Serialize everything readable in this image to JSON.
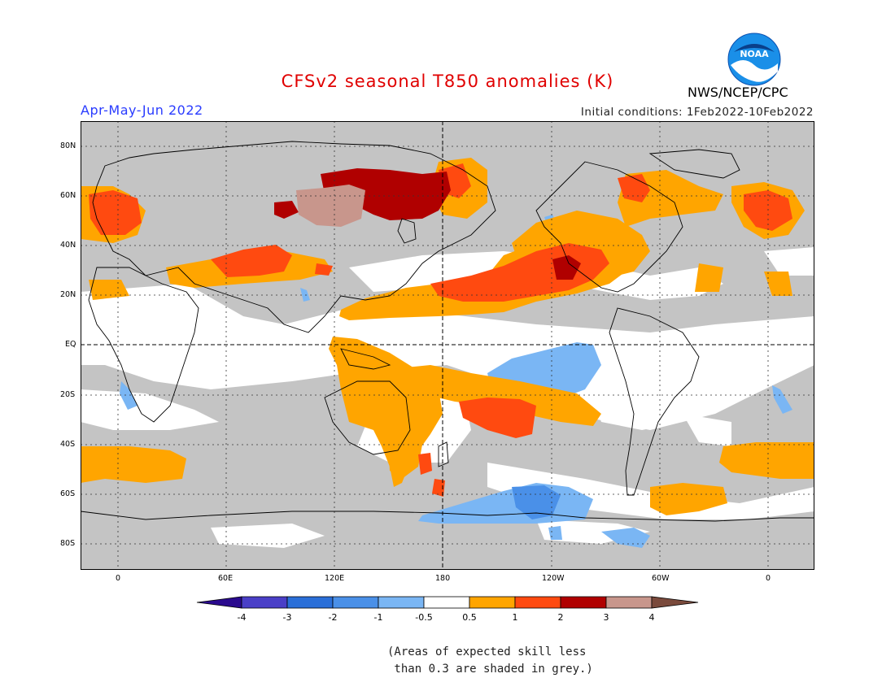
{
  "header": {
    "title": "CFSv2 seasonal T850 anomalies (K)",
    "season": "Apr-May-Jun 2022",
    "initial_conditions": "Initial conditions: 1Feb2022-10Feb2022",
    "agency": "NWS/NCEP/CPC",
    "logo_text": "NOAA",
    "title_color": "#e00000",
    "season_color": "#2a3cff"
  },
  "map": {
    "lat_labels": [
      "80N",
      "60N",
      "40N",
      "20N",
      "EQ",
      "20S",
      "40S",
      "60S",
      "80S"
    ],
    "lon_labels": [
      "0",
      "60E",
      "120E",
      "180",
      "120W",
      "60W",
      "0"
    ],
    "skill_shade_color": "#c4c4c4"
  },
  "legend": {
    "tick_labels": [
      "-4",
      "-3",
      "-2",
      "-1",
      "-0.5",
      "0.5",
      "1",
      "2",
      "3",
      "4"
    ],
    "colors": [
      "#2a0a8e",
      "#4a3fc7",
      "#2a6fd8",
      "#4a90e8",
      "#7ab6f4",
      "#ffffff",
      "#ffa500",
      "#ff4a10",
      "#b00000",
      "#c8968c",
      "#7a4a3c"
    ]
  },
  "footnote": {
    "line1": "(Areas of expected skill less",
    "line2": " than 0.3 are shaded in grey.)"
  }
}
